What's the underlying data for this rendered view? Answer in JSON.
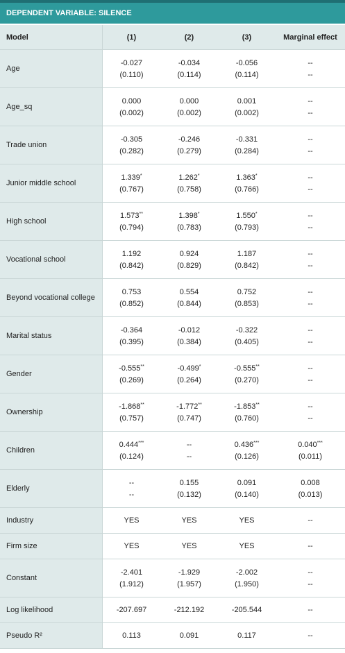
{
  "table": {
    "title": "DEPENDENT VARIABLE: SILENCE",
    "columns": [
      "Model",
      "(1)",
      "(2)",
      "(3)",
      "Marginal effect"
    ],
    "rows": [
      {
        "label": "Age",
        "cells": [
          {
            "coef": "-0.027",
            "se": "(0.110)"
          },
          {
            "coef": "-0.034",
            "se": "(0.114)"
          },
          {
            "coef": "-0.056",
            "se": "(0.114)"
          },
          {
            "coef": "--",
            "se": "--"
          }
        ]
      },
      {
        "label": "Age_sq",
        "cells": [
          {
            "coef": "0.000",
            "se": "(0.002)"
          },
          {
            "coef": "0.000",
            "se": "(0.002)"
          },
          {
            "coef": "0.001",
            "se": "(0.002)"
          },
          {
            "coef": "--",
            "se": "--"
          }
        ]
      },
      {
        "label": "Trade union",
        "cells": [
          {
            "coef": "-0.305",
            "se": "(0.282)"
          },
          {
            "coef": "-0.246",
            "se": "(0.279)"
          },
          {
            "coef": "-0.331",
            "se": "(0.284)"
          },
          {
            "coef": "--",
            "se": "--"
          }
        ]
      },
      {
        "label": "Junior middle school",
        "cells": [
          {
            "coef": "1.339",
            "stars": "*",
            "se": "(0.767)"
          },
          {
            "coef": "1.262",
            "stars": "*",
            "se": "(0.758)"
          },
          {
            "coef": "1.363",
            "stars": "*",
            "se": "(0.766)"
          },
          {
            "coef": "--",
            "se": "--"
          }
        ]
      },
      {
        "label": "High school",
        "cells": [
          {
            "coef": "1.573",
            "stars": "**",
            "se": "(0.794)"
          },
          {
            "coef": "1.398",
            "stars": "*",
            "se": "(0.783)"
          },
          {
            "coef": "1.550",
            "stars": "*",
            "se": "(0.793)"
          },
          {
            "coef": "--",
            "se": "--"
          }
        ]
      },
      {
        "label": "Vocational school",
        "cells": [
          {
            "coef": "1.192",
            "se": "(0.842)"
          },
          {
            "coef": "0.924",
            "se": "(0.829)"
          },
          {
            "coef": "1.187",
            "se": "(0.842)"
          },
          {
            "coef": "--",
            "se": "--"
          }
        ]
      },
      {
        "label": "Beyond vocational college",
        "cells": [
          {
            "coef": "0.753",
            "se": "(0.852)"
          },
          {
            "coef": "0.554",
            "se": "(0.844)"
          },
          {
            "coef": "0.752",
            "se": "(0.853)"
          },
          {
            "coef": "--",
            "se": "--"
          }
        ]
      },
      {
        "label": "Marital status",
        "cells": [
          {
            "coef": "-0.364",
            "se": "(0.395)"
          },
          {
            "coef": "-0.012",
            "se": "(0.384)"
          },
          {
            "coef": "-0.322",
            "se": "(0.405)"
          },
          {
            "coef": "--",
            "se": "--"
          }
        ]
      },
      {
        "label": "Gender",
        "cells": [
          {
            "coef": "-0.555",
            "stars": "**",
            "se": "(0.269)"
          },
          {
            "coef": "-0.499",
            "stars": "*",
            "se": "(0.264)"
          },
          {
            "coef": "-0.555",
            "stars": "**",
            "se": "(0.270)"
          },
          {
            "coef": "--",
            "se": "--"
          }
        ]
      },
      {
        "label": "Ownership",
        "cells": [
          {
            "coef": "-1.868",
            "stars": "**",
            "se": "(0.757)"
          },
          {
            "coef": "-1.772",
            "stars": "**",
            "se": "(0.747)"
          },
          {
            "coef": "-1.853",
            "stars": "**",
            "se": "(0.760)"
          },
          {
            "coef": "--",
            "se": "--"
          }
        ]
      },
      {
        "label": "Children",
        "cells": [
          {
            "coef": "0.444",
            "stars": "***",
            "se": "(0.124)"
          },
          {
            "coef": "--",
            "se": "--"
          },
          {
            "coef": "0.436",
            "stars": "***",
            "se": "(0.126)"
          },
          {
            "coef": "0.040",
            "stars": "***",
            "se": "(0.011)"
          }
        ]
      },
      {
        "label": "Elderly",
        "cells": [
          {
            "coef": "--",
            "se": "--"
          },
          {
            "coef": "0.155",
            "se": "(0.132)"
          },
          {
            "coef": "0.091",
            "se": "(0.140)"
          },
          {
            "coef": "0.008",
            "se": "(0.013)"
          }
        ]
      },
      {
        "label": "Industry",
        "cells": [
          {
            "coef": "YES"
          },
          {
            "coef": "YES"
          },
          {
            "coef": "YES"
          },
          {
            "coef": "--"
          }
        ]
      },
      {
        "label": "Firm size",
        "cells": [
          {
            "coef": "YES"
          },
          {
            "coef": "YES"
          },
          {
            "coef": "YES"
          },
          {
            "coef": "--"
          }
        ]
      },
      {
        "label": "Constant",
        "cells": [
          {
            "coef": "-2.401",
            "se": "(1.912)"
          },
          {
            "coef": "-1.929",
            "se": "(1.957)"
          },
          {
            "coef": "-2.002",
            "se": "(1.950)"
          },
          {
            "coef": "--",
            "se": "--"
          }
        ]
      },
      {
        "label": "Log likelihood",
        "cells": [
          {
            "coef": "-207.697"
          },
          {
            "coef": "-212.192"
          },
          {
            "coef": "-205.544"
          },
          {
            "coef": "--"
          }
        ]
      },
      {
        "label": "Pseudo R²",
        "cells": [
          {
            "coef": "0.113"
          },
          {
            "coef": "0.091"
          },
          {
            "coef": "0.117"
          },
          {
            "coef": "--"
          }
        ]
      }
    ]
  }
}
